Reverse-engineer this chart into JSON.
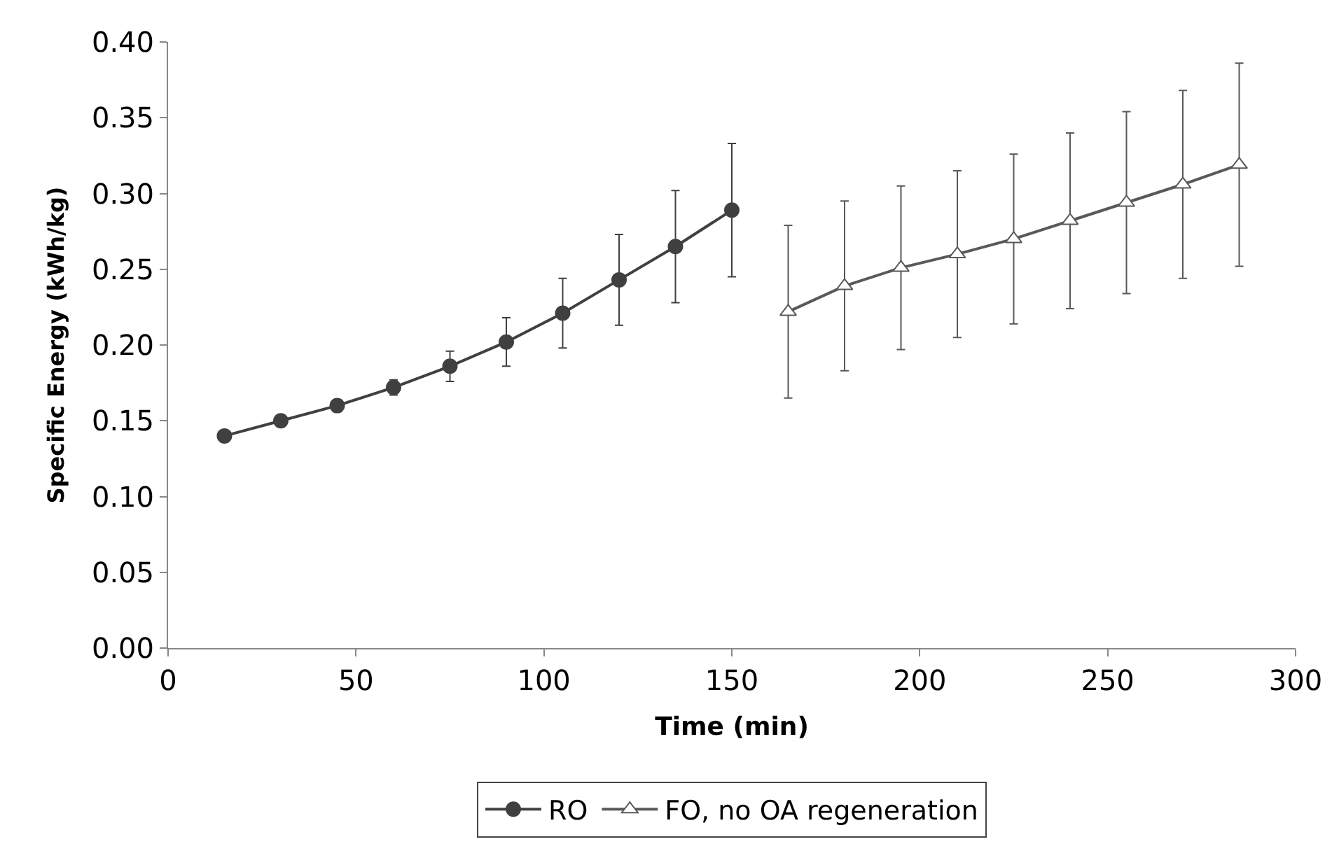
{
  "chart_data": {
    "type": "line",
    "xlabel": "Time (min)",
    "ylabel": "Specific Energy (kWh/kg)",
    "xlim": [
      0,
      300
    ],
    "xticks": [
      0,
      50,
      100,
      150,
      200,
      250,
      300
    ],
    "ylim": [
      0,
      0.4
    ],
    "yticks": [
      {
        "value": 0,
        "label": "0.00"
      },
      {
        "value": 0.05,
        "label": "0.05"
      },
      {
        "value": 0.1,
        "label": "0.10"
      },
      {
        "value": 0.15,
        "label": "0.15"
      },
      {
        "value": 0.2,
        "label": "0.20"
      },
      {
        "value": 0.25,
        "label": "0.25"
      },
      {
        "value": 0.3,
        "label": "0.30"
      },
      {
        "value": 0.35,
        "label": "0.35"
      },
      {
        "value": 0.4,
        "label": "0.40"
      }
    ],
    "legend": "bottom",
    "line_style": "solid",
    "series": [
      {
        "name": "RO",
        "color": "#404040",
        "marker": "circle",
        "x": [
          15,
          30,
          45,
          60,
          75,
          90,
          105,
          120,
          135,
          150
        ],
        "values": [
          0.14,
          0.15,
          0.16,
          0.172,
          0.186,
          0.202,
          0.221,
          0.243,
          0.265,
          0.289
        ],
        "errors": [
          null,
          null,
          0.004,
          0.005,
          0.01,
          0.016,
          0.023,
          0.03,
          0.037,
          0.044
        ]
      },
      {
        "name": "FO, no OA regeneration",
        "color": "#595959",
        "marker": "triangle",
        "x": [
          165,
          180,
          195,
          210,
          225,
          240,
          255,
          270,
          285
        ],
        "values": [
          0.222,
          0.239,
          0.251,
          0.26,
          0.27,
          0.282,
          0.294,
          0.306,
          0.319
        ],
        "errors": [
          0.057,
          0.056,
          0.054,
          0.055,
          0.056,
          0.058,
          0.06,
          0.062,
          0.067
        ]
      }
    ]
  }
}
